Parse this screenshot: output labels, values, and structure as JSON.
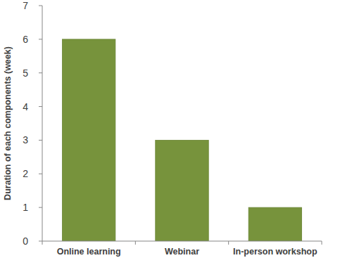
{
  "chart_data": {
    "type": "bar",
    "y_label": "Duration of each components (week)",
    "categories": [
      "Online learning",
      "Webinar",
      "In-person workshop"
    ],
    "values": [
      6,
      3,
      1
    ],
    "color": "#77933c",
    "ylim": [
      0,
      7
    ],
    "yticks": [
      0,
      1,
      2,
      3,
      4,
      5,
      6,
      7
    ],
    "grid": false
  }
}
